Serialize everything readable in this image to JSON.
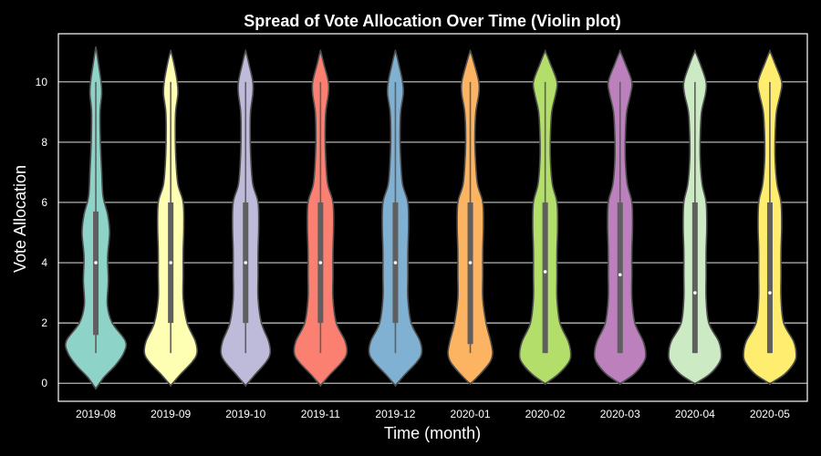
{
  "chart_data": {
    "type": "violin",
    "title": "Spread of Vote Allocation Over Time (Violin plot)",
    "xlabel": "Time (month)",
    "ylabel": "Vote Allocation",
    "ylim": [
      -0.6,
      11.6
    ],
    "yticks": [
      0,
      2,
      4,
      6,
      8,
      10
    ],
    "grid": "y-axis",
    "legend": "none",
    "categories": [
      "2019-08",
      "2019-09",
      "2019-10",
      "2019-11",
      "2019-12",
      "2020-01",
      "2020-02",
      "2020-03",
      "2020-04",
      "2020-05"
    ],
    "series": [
      {
        "category": "2019-08",
        "color": "#8dd3c7",
        "min": 1,
        "q1": 1.6,
        "median": 4,
        "q3": 5.7,
        "max": 10,
        "density": [
          [
            -0.15,
            0.02
          ],
          [
            0.2,
            0.25
          ],
          [
            0.6,
            0.6
          ],
          [
            1.0,
            0.85
          ],
          [
            1.4,
            0.9
          ],
          [
            2.0,
            0.5
          ],
          [
            2.6,
            0.35
          ],
          [
            3.4,
            0.38
          ],
          [
            4.2,
            0.36
          ],
          [
            5.0,
            0.42
          ],
          [
            5.6,
            0.36
          ],
          [
            6.2,
            0.22
          ],
          [
            7.0,
            0.18
          ],
          [
            8.0,
            0.14
          ],
          [
            9.0,
            0.13
          ],
          [
            9.6,
            0.18
          ],
          [
            10.0,
            0.16
          ],
          [
            10.6,
            0.08
          ],
          [
            11.1,
            0.01
          ]
        ]
      },
      {
        "category": "2019-09",
        "color": "#ffffb3",
        "min": 1,
        "q1": 2,
        "median": 4,
        "q3": 6,
        "max": 10,
        "density": [
          [
            -0.05,
            0.02
          ],
          [
            0.3,
            0.3
          ],
          [
            0.7,
            0.65
          ],
          [
            1.0,
            0.8
          ],
          [
            1.4,
            0.75
          ],
          [
            2.0,
            0.5
          ],
          [
            2.8,
            0.38
          ],
          [
            3.6,
            0.38
          ],
          [
            4.4,
            0.38
          ],
          [
            5.2,
            0.4
          ],
          [
            6.0,
            0.38
          ],
          [
            6.6,
            0.22
          ],
          [
            7.4,
            0.16
          ],
          [
            8.2,
            0.14
          ],
          [
            9.0,
            0.15
          ],
          [
            9.6,
            0.22
          ],
          [
            10.0,
            0.2
          ],
          [
            10.6,
            0.1
          ],
          [
            11.0,
            0.01
          ]
        ]
      },
      {
        "category": "2019-10",
        "color": "#bebada",
        "min": 1,
        "q1": 2,
        "median": 4,
        "q3": 6,
        "max": 10,
        "density": [
          [
            -0.05,
            0.02
          ],
          [
            0.3,
            0.3
          ],
          [
            0.7,
            0.62
          ],
          [
            1.0,
            0.75
          ],
          [
            1.4,
            0.7
          ],
          [
            2.0,
            0.48
          ],
          [
            2.8,
            0.38
          ],
          [
            3.6,
            0.38
          ],
          [
            4.4,
            0.38
          ],
          [
            5.2,
            0.4
          ],
          [
            6.0,
            0.38
          ],
          [
            6.6,
            0.22
          ],
          [
            7.4,
            0.16
          ],
          [
            8.2,
            0.14
          ],
          [
            9.0,
            0.15
          ],
          [
            9.6,
            0.22
          ],
          [
            10.0,
            0.22
          ],
          [
            10.6,
            0.1
          ],
          [
            11.0,
            0.01
          ]
        ]
      },
      {
        "category": "2019-11",
        "color": "#fb8072",
        "min": 1,
        "q1": 2,
        "median": 4,
        "q3": 6,
        "max": 10,
        "density": [
          [
            -0.05,
            0.02
          ],
          [
            0.3,
            0.3
          ],
          [
            0.7,
            0.65
          ],
          [
            1.0,
            0.8
          ],
          [
            1.4,
            0.75
          ],
          [
            2.0,
            0.48
          ],
          [
            2.8,
            0.38
          ],
          [
            3.6,
            0.38
          ],
          [
            4.4,
            0.38
          ],
          [
            5.2,
            0.4
          ],
          [
            6.0,
            0.38
          ],
          [
            6.6,
            0.22
          ],
          [
            7.4,
            0.16
          ],
          [
            8.2,
            0.14
          ],
          [
            9.0,
            0.16
          ],
          [
            9.6,
            0.24
          ],
          [
            10.0,
            0.24
          ],
          [
            10.6,
            0.1
          ],
          [
            11.0,
            0.01
          ]
        ]
      },
      {
        "category": "2019-12",
        "color": "#80b1d3",
        "min": 1,
        "q1": 2,
        "median": 4,
        "q3": 6,
        "max": 10,
        "density": [
          [
            -0.05,
            0.02
          ],
          [
            0.3,
            0.3
          ],
          [
            0.7,
            0.65
          ],
          [
            1.0,
            0.8
          ],
          [
            1.4,
            0.75
          ],
          [
            2.0,
            0.48
          ],
          [
            2.8,
            0.38
          ],
          [
            3.6,
            0.38
          ],
          [
            4.4,
            0.38
          ],
          [
            5.2,
            0.4
          ],
          [
            6.0,
            0.38
          ],
          [
            6.6,
            0.22
          ],
          [
            7.4,
            0.16
          ],
          [
            8.2,
            0.14
          ],
          [
            9.0,
            0.16
          ],
          [
            9.6,
            0.24
          ],
          [
            10.0,
            0.22
          ],
          [
            10.6,
            0.1
          ],
          [
            11.0,
            0.01
          ]
        ]
      },
      {
        "category": "2020-01",
        "color": "#fdb462",
        "min": 1,
        "q1": 1.3,
        "median": 4,
        "q3": 6,
        "max": 10,
        "density": [
          [
            0.0,
            0.02
          ],
          [
            0.3,
            0.3
          ],
          [
            0.7,
            0.6
          ],
          [
            1.0,
            0.68
          ],
          [
            1.4,
            0.62
          ],
          [
            2.0,
            0.48
          ],
          [
            2.8,
            0.38
          ],
          [
            3.6,
            0.38
          ],
          [
            4.4,
            0.38
          ],
          [
            5.2,
            0.4
          ],
          [
            6.0,
            0.38
          ],
          [
            6.6,
            0.22
          ],
          [
            7.4,
            0.16
          ],
          [
            8.2,
            0.14
          ],
          [
            9.0,
            0.17
          ],
          [
            9.6,
            0.26
          ],
          [
            10.0,
            0.26
          ],
          [
            10.6,
            0.12
          ],
          [
            11.0,
            0.01
          ]
        ]
      },
      {
        "category": "2020-02",
        "color": "#b3de69",
        "min": 1,
        "q1": 1,
        "median": 3.7,
        "q3": 6,
        "max": 10,
        "density": [
          [
            0.0,
            0.02
          ],
          [
            0.3,
            0.4
          ],
          [
            0.7,
            0.72
          ],
          [
            1.0,
            0.78
          ],
          [
            1.4,
            0.7
          ],
          [
            2.0,
            0.45
          ],
          [
            2.8,
            0.36
          ],
          [
            3.6,
            0.36
          ],
          [
            4.4,
            0.36
          ],
          [
            5.2,
            0.38
          ],
          [
            6.0,
            0.36
          ],
          [
            6.6,
            0.22
          ],
          [
            7.4,
            0.16
          ],
          [
            8.2,
            0.16
          ],
          [
            9.0,
            0.2
          ],
          [
            9.6,
            0.32
          ],
          [
            10.0,
            0.36
          ],
          [
            10.6,
            0.16
          ],
          [
            11.0,
            0.01
          ]
        ]
      },
      {
        "category": "2020-03",
        "color": "#bc80bd",
        "min": 1,
        "q1": 1,
        "median": 3.6,
        "q3": 6,
        "max": 10,
        "density": [
          [
            0.0,
            0.02
          ],
          [
            0.3,
            0.42
          ],
          [
            0.7,
            0.72
          ],
          [
            1.0,
            0.78
          ],
          [
            1.4,
            0.7
          ],
          [
            2.0,
            0.45
          ],
          [
            2.8,
            0.36
          ],
          [
            3.6,
            0.36
          ],
          [
            4.4,
            0.36
          ],
          [
            5.2,
            0.38
          ],
          [
            6.0,
            0.36
          ],
          [
            6.6,
            0.22
          ],
          [
            7.4,
            0.16
          ],
          [
            8.2,
            0.16
          ],
          [
            9.0,
            0.2
          ],
          [
            9.6,
            0.32
          ],
          [
            10.0,
            0.36
          ],
          [
            10.6,
            0.16
          ],
          [
            11.0,
            0.01
          ]
        ]
      },
      {
        "category": "2020-04",
        "color": "#ccebc5",
        "min": 1,
        "q1": 1,
        "median": 3,
        "q3": 6,
        "max": 10,
        "density": [
          [
            0.0,
            0.02
          ],
          [
            0.3,
            0.45
          ],
          [
            0.7,
            0.75
          ],
          [
            1.0,
            0.8
          ],
          [
            1.4,
            0.72
          ],
          [
            2.0,
            0.42
          ],
          [
            2.8,
            0.34
          ],
          [
            3.6,
            0.34
          ],
          [
            4.4,
            0.34
          ],
          [
            5.2,
            0.36
          ],
          [
            6.0,
            0.34
          ],
          [
            6.6,
            0.22
          ],
          [
            7.4,
            0.16
          ],
          [
            8.2,
            0.16
          ],
          [
            9.0,
            0.2
          ],
          [
            9.6,
            0.32
          ],
          [
            10.0,
            0.34
          ],
          [
            10.6,
            0.16
          ],
          [
            11.0,
            0.01
          ]
        ]
      },
      {
        "category": "2020-05",
        "color": "#ffed6f",
        "min": 1,
        "q1": 1,
        "median": 3,
        "q3": 6,
        "max": 10,
        "density": [
          [
            0.0,
            0.02
          ],
          [
            0.3,
            0.45
          ],
          [
            0.7,
            0.75
          ],
          [
            1.0,
            0.8
          ],
          [
            1.4,
            0.72
          ],
          [
            2.0,
            0.42
          ],
          [
            2.8,
            0.34
          ],
          [
            3.6,
            0.34
          ],
          [
            4.4,
            0.34
          ],
          [
            5.2,
            0.36
          ],
          [
            6.0,
            0.34
          ],
          [
            6.6,
            0.22
          ],
          [
            7.4,
            0.16
          ],
          [
            8.2,
            0.16
          ],
          [
            9.0,
            0.2
          ],
          [
            9.6,
            0.32
          ],
          [
            10.0,
            0.36
          ],
          [
            10.6,
            0.16
          ],
          [
            11.0,
            0.01
          ]
        ]
      }
    ]
  },
  "style": {
    "background": "#000000",
    "text": "#ffffff",
    "grid": "#ffffff",
    "outline": "#4d4d4d",
    "box": "#5f5f5f",
    "median_dot": "#ffffff"
  }
}
